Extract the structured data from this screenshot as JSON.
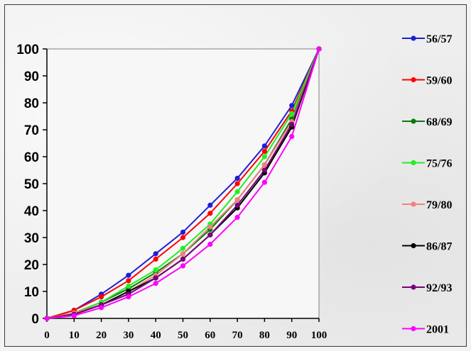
{
  "chart_data": {
    "type": "line",
    "title": "",
    "xlabel": "",
    "ylabel": "",
    "x": [
      0,
      10,
      20,
      30,
      40,
      50,
      60,
      70,
      80,
      90,
      100
    ],
    "xlim": [
      0,
      100
    ],
    "ylim": [
      0,
      100
    ],
    "xticks": [
      "0",
      "10",
      "20",
      "30",
      "40",
      "50",
      "60",
      "70",
      "80",
      "90",
      "100"
    ],
    "yticks": [
      "0",
      "10",
      "20",
      "30",
      "40",
      "50",
      "60",
      "70",
      "80",
      "90",
      "100"
    ],
    "grid": false,
    "legend_position": "right",
    "series": [
      {
        "name": "56/57",
        "color": "#1f1fd6",
        "values": [
          0,
          3,
          9,
          16,
          24,
          32,
          42,
          52,
          64,
          79,
          100
        ]
      },
      {
        "name": "59/60",
        "color": "#ff0000",
        "values": [
          0,
          3,
          8,
          14,
          22,
          30,
          39,
          50,
          62,
          77,
          100
        ]
      },
      {
        "name": "68/69",
        "color": "#0a7a0a",
        "values": [
          0,
          2,
          6,
          11,
          17,
          24,
          33,
          44,
          57,
          74,
          100
        ]
      },
      {
        "name": "75/76",
        "color": "#22ee22",
        "values": [
          0,
          2,
          6,
          12,
          18,
          26,
          35,
          47,
          60,
          76,
          100
        ]
      },
      {
        "name": "79/80",
        "color": "#f08080",
        "values": [
          0,
          2,
          5,
          10,
          16,
          24,
          34,
          44,
          57,
          73,
          100
        ]
      },
      {
        "name": "86/87",
        "color": "#000000",
        "values": [
          0,
          1.5,
          5,
          10,
          15,
          22,
          31,
          41,
          54,
          71,
          100
        ]
      },
      {
        "name": "92/93",
        "color": "#7a007a",
        "values": [
          0,
          1.5,
          5,
          9,
          15,
          22,
          31,
          42,
          55,
          72,
          100
        ]
      },
      {
        "name": "2001",
        "color": "#ff00ff",
        "values": [
          0,
          1,
          4,
          8,
          13,
          19.5,
          27.5,
          37.5,
          50.5,
          67.5,
          100
        ]
      }
    ]
  }
}
